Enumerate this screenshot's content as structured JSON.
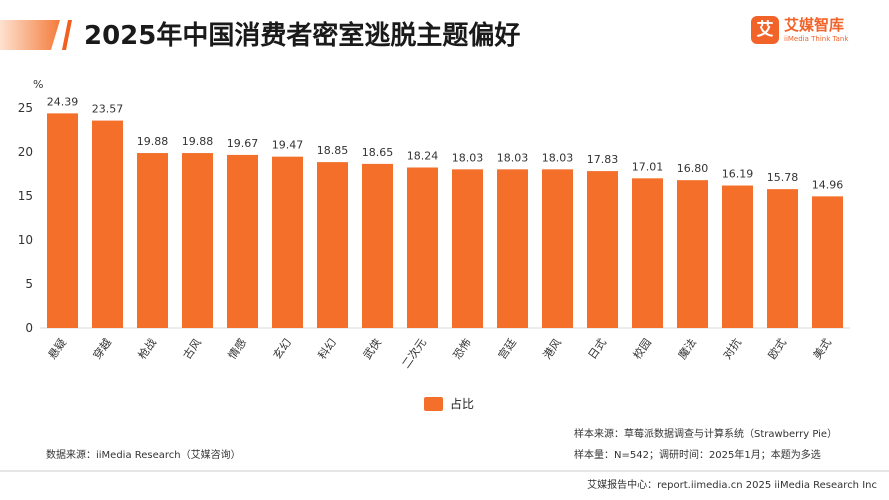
{
  "page": {
    "title": "2025年中国消费者密室逃脱主题偏好"
  },
  "logo": {
    "mark": "艾",
    "name_cn": "艾媒智库",
    "name_en": "iiMedia Think Tank"
  },
  "notes": {
    "data_source": "数据来源：iiMedia Research（艾媒咨询）",
    "sample_source": "样本来源：草莓派数据调查与计算系统（Strawberry Pie）",
    "sample_size": "样本量：N=542；调研时间：2025年1月；本题为多选",
    "footer": "艾媒报告中心：report.iimedia.cn   2025 iiMedia Research Inc"
  },
  "colors": {
    "bar": "#f46f2a",
    "accent": "#f25f1f"
  },
  "chart_data": {
    "type": "bar",
    "ylabel": "%",
    "ylim": [
      0,
      25
    ],
    "yticks": [
      0,
      5,
      10,
      15,
      20,
      25
    ],
    "grid": false,
    "legend_position": "bottom-center",
    "categories": [
      "悬疑",
      "穿越",
      "枪战",
      "古风",
      "情感",
      "玄幻",
      "科幻",
      "武侠",
      "二次元",
      "恐怖",
      "宫廷",
      "港风",
      "日式",
      "校园",
      "魔法",
      "对抗",
      "欧式",
      "美式"
    ],
    "series": [
      {
        "name": "占比",
        "values": [
          24.39,
          23.57,
          19.88,
          19.88,
          19.67,
          19.47,
          18.85,
          18.65,
          18.24,
          18.03,
          18.03,
          18.03,
          17.83,
          17.01,
          16.8,
          16.19,
          15.78,
          14.96
        ]
      }
    ]
  }
}
